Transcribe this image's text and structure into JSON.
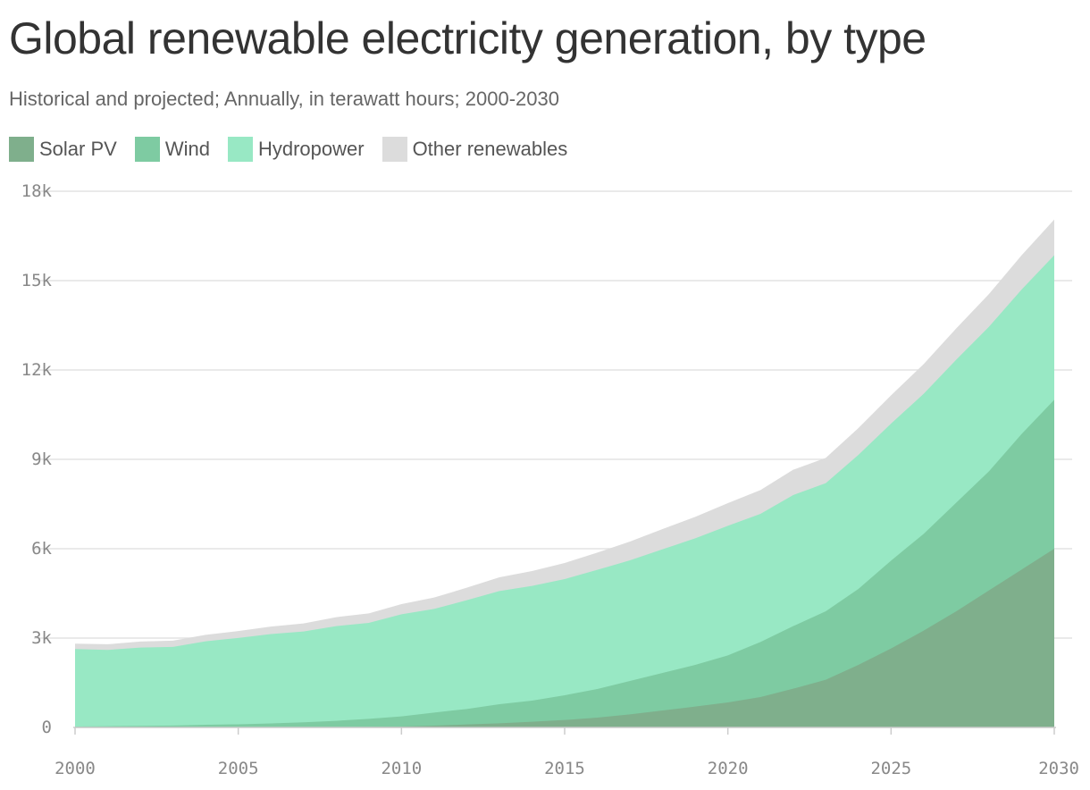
{
  "colors": {
    "solar": "#7faf8c",
    "wind": "#7ecba2",
    "hydro": "#98e8c4",
    "other": "#dcdcdc",
    "grid": "#e3e3e3",
    "axis": "#cccccc"
  },
  "chart_data": {
    "type": "area",
    "stacked": true,
    "title": "Global renewable electricity generation, by type",
    "subtitle": "Historical and projected; Annually, in terawatt hours; 2000-2030",
    "legend_position": "top-left",
    "grid": true,
    "x": [
      2000,
      2001,
      2002,
      2003,
      2004,
      2005,
      2006,
      2007,
      2008,
      2009,
      2010,
      2011,
      2012,
      2013,
      2014,
      2015,
      2016,
      2017,
      2018,
      2019,
      2020,
      2021,
      2022,
      2023,
      2024,
      2025,
      2026,
      2027,
      2028,
      2029,
      2030
    ],
    "xlim": [
      2000,
      2030
    ],
    "ylim": [
      0,
      18000
    ],
    "x_ticks": [
      2000,
      2005,
      2010,
      2015,
      2020,
      2025,
      2030
    ],
    "y_ticks": [
      0,
      3000,
      6000,
      9000,
      12000,
      15000,
      18000
    ],
    "x_tick_labels": [
      "2000",
      "2005",
      "2010",
      "2015",
      "2020",
      "2025",
      "2030"
    ],
    "y_tick_labels": [
      "0",
      "3k",
      "6k",
      "9k",
      "12k",
      "15k",
      "18k"
    ],
    "series": [
      {
        "name": "Solar PV",
        "color_key": "solar",
        "values": [
          1,
          2,
          3,
          4,
          5,
          5,
          6,
          7,
          12,
          20,
          30,
          60,
          100,
          140,
          190,
          250,
          330,
          440,
          570,
          700,
          840,
          1020,
          1300,
          1600,
          2100,
          2650,
          3250,
          3900,
          4600,
          5300,
          6000
        ]
      },
      {
        "name": "Wind",
        "color_key": "wind",
        "values": [
          30,
          40,
          50,
          60,
          85,
          100,
          130,
          165,
          210,
          270,
          340,
          440,
          520,
          640,
          710,
          830,
          960,
          1120,
          1260,
          1400,
          1580,
          1850,
          2100,
          2300,
          2550,
          2950,
          3250,
          3650,
          4000,
          4550,
          5000
        ]
      },
      {
        "name": "Hydropower",
        "color_key": "hydro",
        "values": [
          2600,
          2560,
          2630,
          2640,
          2800,
          2900,
          3000,
          3050,
          3180,
          3220,
          3430,
          3480,
          3650,
          3800,
          3850,
          3900,
          4000,
          4050,
          4150,
          4250,
          4350,
          4300,
          4400,
          4300,
          4500,
          4600,
          4700,
          4800,
          4850,
          4850,
          4850
        ]
      },
      {
        "name": "Other renewables",
        "color_key": "other",
        "values": [
          180,
          190,
          200,
          210,
          220,
          230,
          250,
          270,
          300,
          320,
          340,
          380,
          420,
          460,
          500,
          540,
          580,
          630,
          680,
          720,
          760,
          800,
          850,
          850,
          900,
          950,
          1000,
          1050,
          1100,
          1150,
          1200
        ]
      }
    ]
  }
}
